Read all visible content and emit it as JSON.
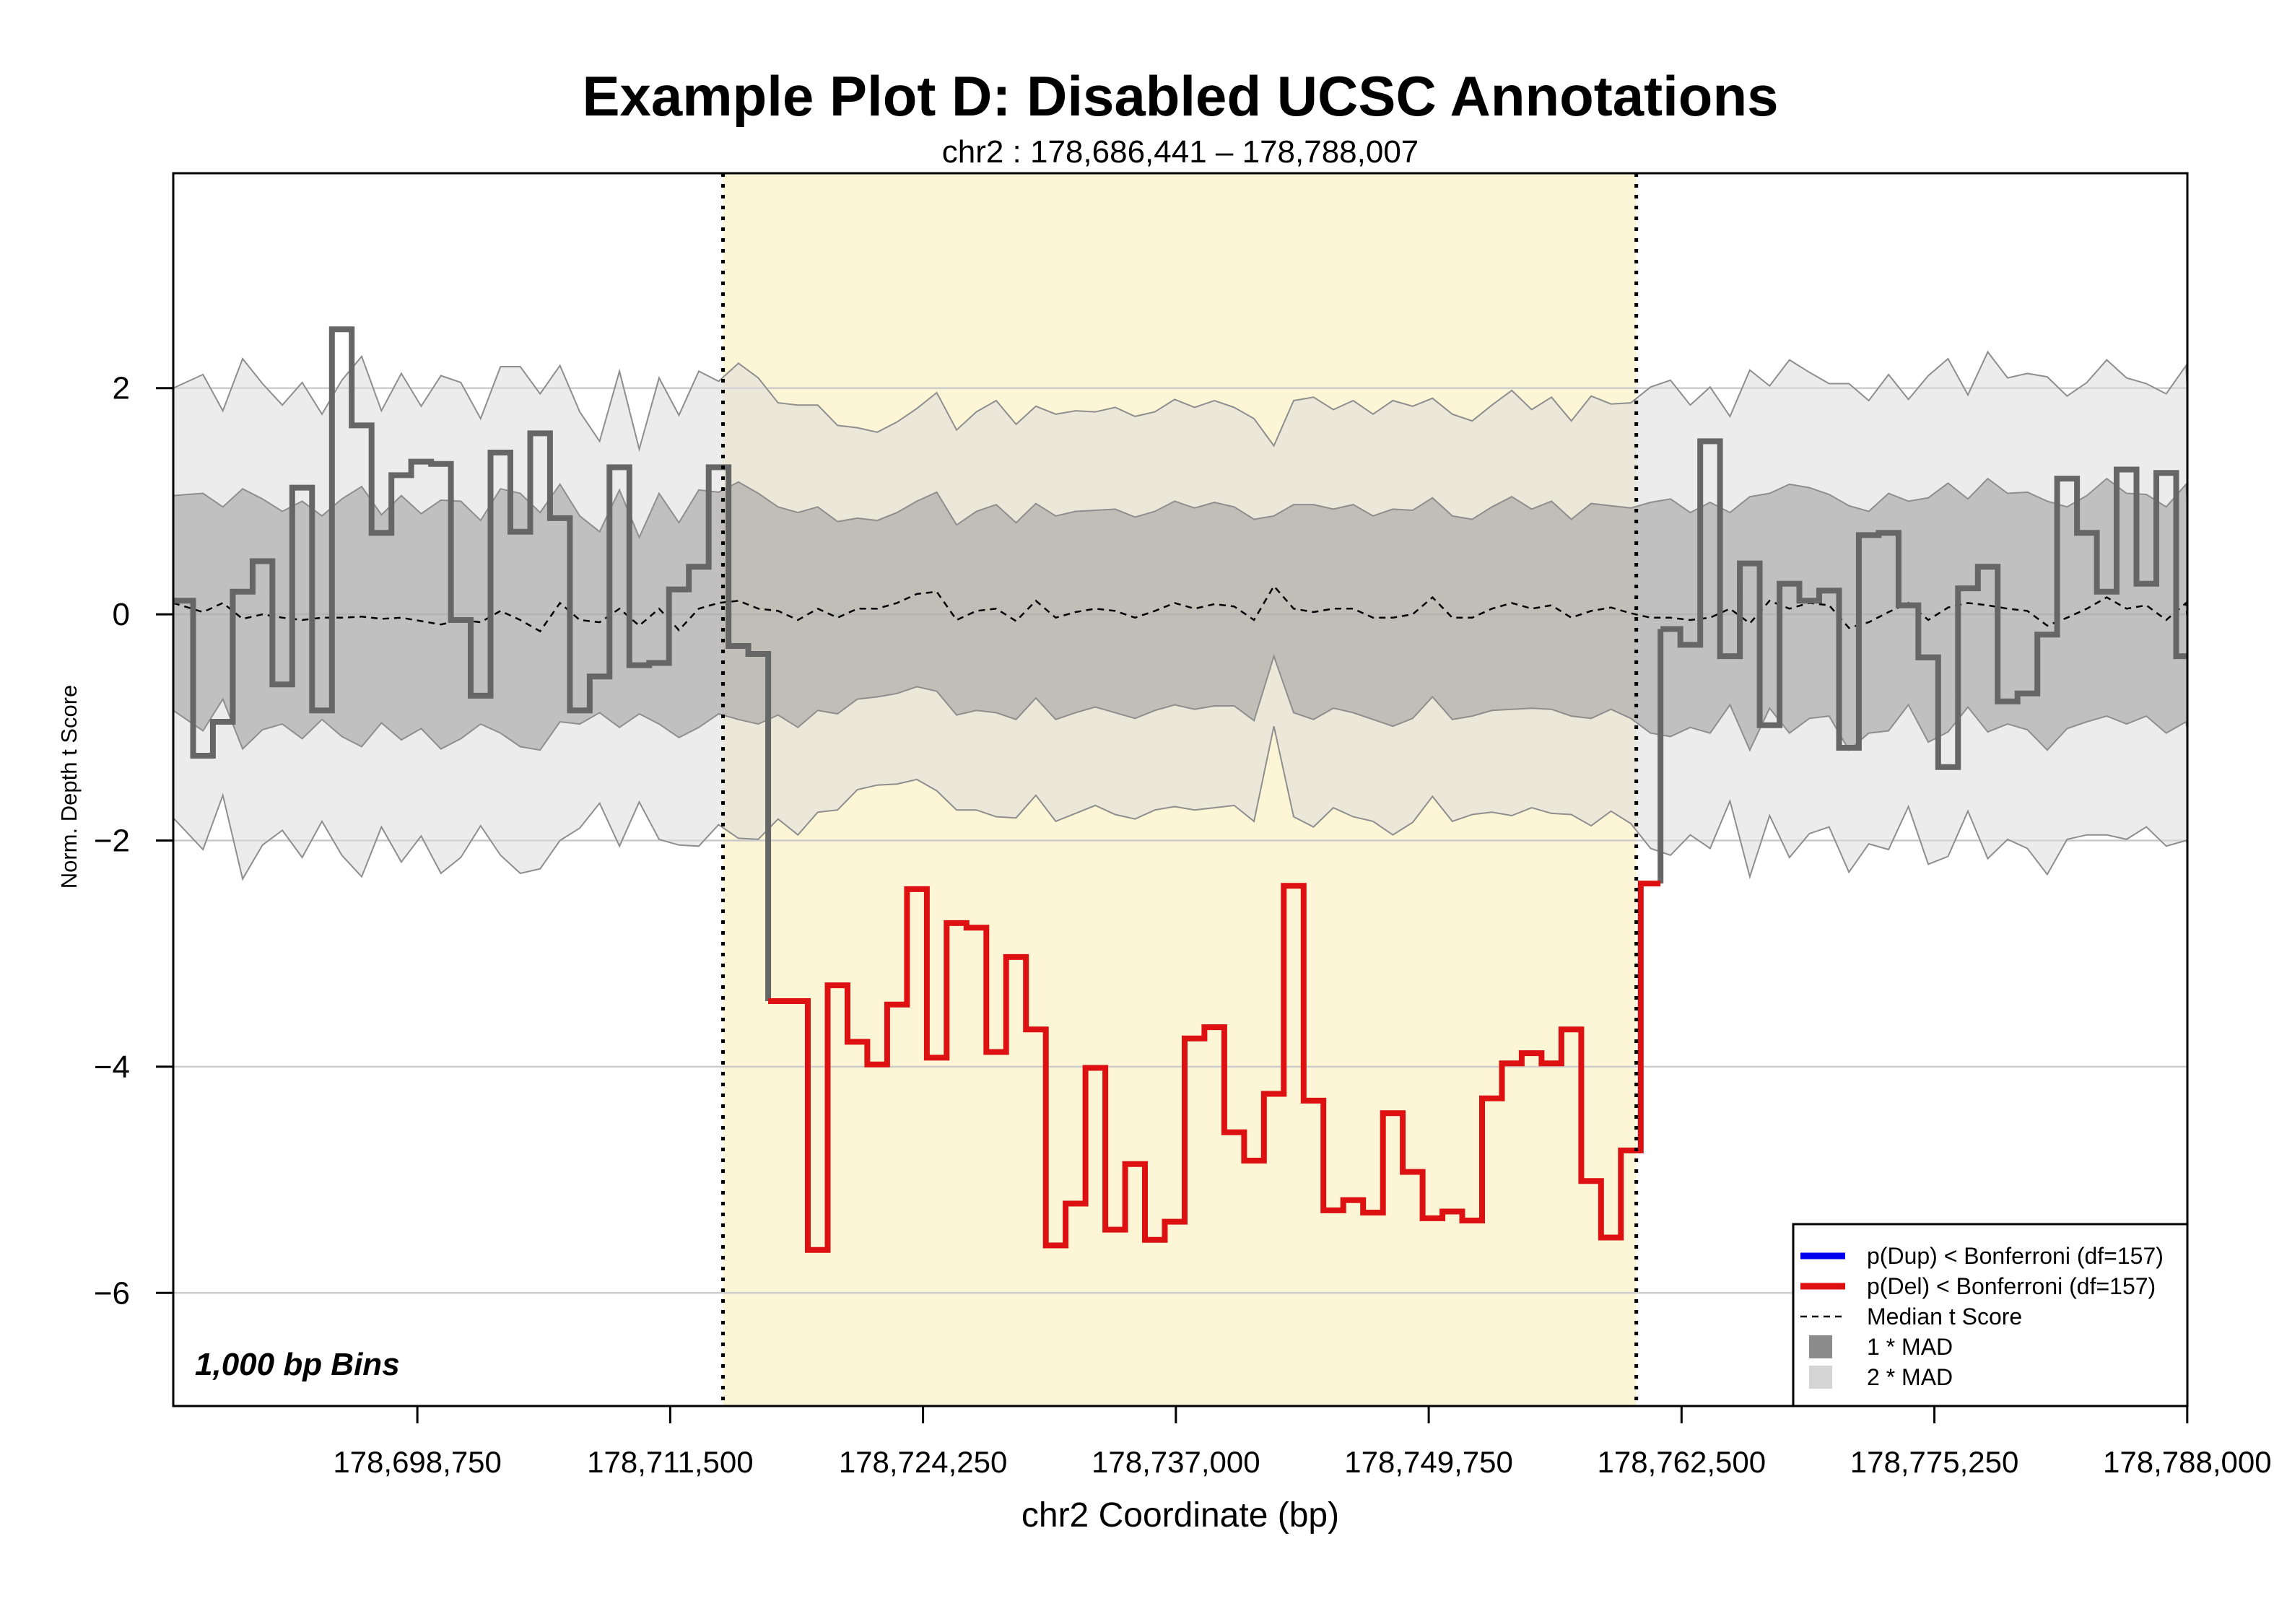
{
  "chart_data": {
    "type": "line",
    "title": "Example Plot D: Disabled UCSC Annotations",
    "subtitle": "chr2 : 178,686,441 – 178,788,007",
    "xlabel": "chr2 Coordinate (bp)",
    "ylabel": "Norm. Depth t Score",
    "annotation": "1,000 bp Bins",
    "xlim": [
      178686441,
      178788007
    ],
    "ylim": [
      -7,
      3.9
    ],
    "grid_y": true,
    "x_ticks": [
      178698750,
      178711500,
      178724250,
      178737000,
      178749750,
      178762500,
      178775250,
      178788000
    ],
    "x_tick_labels": [
      "178,698,750",
      "178,711,500",
      "178,724,250",
      "178,737,000",
      "178,749,750",
      "178,762,500",
      "178,775,250",
      "178,788,000"
    ],
    "y_ticks": [
      2,
      0,
      -2,
      -4,
      -6
    ],
    "y_tick_labels": [
      "2",
      "0",
      "−2",
      "−4",
      "−6"
    ],
    "highlight_region": {
      "start": 178714164,
      "end": 178760218,
      "color": "#fcf6d6"
    },
    "bin_size": 1000,
    "first_bin_start": 178686441,
    "t_scores": [
      0.12,
      -1.25,
      -0.95,
      0.2,
      0.47,
      -0.62,
      1.12,
      -0.85,
      2.52,
      1.67,
      0.72,
      1.23,
      1.35,
      1.33,
      -0.05,
      -0.72,
      1.43,
      0.73,
      1.6,
      0.85,
      -0.85,
      -0.55,
      1.3,
      -0.45,
      -0.43,
      0.22,
      0.42,
      1.3,
      -0.28,
      -0.35,
      -3.42,
      -3.42,
      -5.62,
      -3.28,
      -3.78,
      -3.98,
      -3.45,
      -2.43,
      -3.92,
      -2.73,
      -2.77,
      -3.87,
      -3.03,
      -3.67,
      -5.58,
      -5.21,
      -4.01,
      -5.44,
      -4.86,
      -5.53,
      -5.37,
      -3.75,
      -3.65,
      -4.58,
      -4.83,
      -4.24,
      -2.4,
      -4.3,
      -5.27,
      -5.18,
      -5.29,
      -4.41,
      -4.93,
      -5.34,
      -5.28,
      -5.36,
      -4.28,
      -3.97,
      -3.88,
      -3.97,
      -3.67,
      -5.01,
      -5.51,
      -4.74,
      -2.38,
      -0.13,
      -0.27,
      1.53,
      -0.37,
      0.45,
      -0.98,
      0.27,
      0.12,
      0.21,
      -1.18,
      0.7,
      0.72,
      0.08,
      -0.38,
      -1.35,
      0.23,
      0.42,
      -0.77,
      -0.7,
      -0.18,
      1.2,
      0.72,
      0.2,
      1.28,
      0.27,
      1.25,
      -0.37,
      -0.22
    ],
    "significant_del_range": [
      30,
      74
    ],
    "median_t": [
      0.1,
      0.02,
      0.1,
      -0.04,
      0.0,
      -0.03,
      -0.05,
      -0.03,
      -0.03,
      -0.02,
      -0.04,
      -0.03,
      -0.06,
      -0.09,
      -0.05,
      -0.07,
      0.03,
      -0.05,
      -0.15,
      0.1,
      -0.05,
      -0.07,
      0.05,
      -0.1,
      0.05,
      -0.14,
      0.05,
      0.1,
      0.12,
      0.05,
      0.03,
      -0.05,
      0.05,
      -0.03,
      0.05,
      0.05,
      0.1,
      0.18,
      0.2,
      -0.05,
      0.03,
      0.05,
      -0.06,
      0.12,
      -0.03,
      0.02,
      0.05,
      0.03,
      -0.03,
      0.03,
      0.1,
      0.05,
      0.09,
      0.07,
      -0.05,
      0.25,
      0.05,
      0.02,
      0.05,
      0.05,
      -0.03,
      -0.03,
      0.0,
      0.15,
      -0.03,
      -0.03,
      0.05,
      0.1,
      0.05,
      0.08,
      -0.03,
      0.03,
      0.06,
      0.01,
      -0.03,
      -0.03,
      -0.05,
      -0.03,
      0.05,
      -0.08,
      0.12,
      0.05,
      0.1,
      0.08,
      -0.12,
      -0.07,
      0.02,
      0.1,
      -0.05,
      0.06,
      0.1,
      0.08,
      0.05,
      0.03,
      -0.1,
      -0.03,
      0.05,
      0.15,
      0.05,
      0.08,
      -0.05,
      0.1,
      -0.03
    ],
    "mad": [
      0.95,
      1.05,
      0.85,
      1.15,
      1.02,
      0.94,
      1.05,
      0.9,
      1.05,
      1.15,
      0.92,
      1.08,
      0.95,
      1.1,
      1.05,
      0.9,
      1.08,
      1.12,
      1.05,
      1.05,
      0.92,
      0.8,
      1.05,
      0.78,
      1.02,
      0.95,
      1.05,
      0.98,
      1.05,
      1.02,
      0.92,
      0.95,
      0.9,
      0.85,
      0.8,
      0.78,
      0.8,
      0.82,
      0.88,
      0.84,
      0.88,
      0.92,
      0.87,
      0.86,
      0.9,
      0.89,
      0.87,
      0.9,
      0.89,
      0.88,
      0.9,
      0.89,
      0.9,
      0.88,
      0.89,
      0.62,
      0.92,
      0.95,
      0.88,
      0.92,
      0.9,
      0.96,
      0.92,
      0.88,
      0.9,
      0.87,
      0.9,
      0.94,
      0.88,
      0.92,
      0.87,
      0.95,
      0.9,
      0.93,
      1.02,
      1.05,
      0.95,
      1.02,
      0.85,
      1.12,
      0.95,
      1.1,
      1.02,
      0.98,
      1.08,
      0.98,
      1.05,
      0.9,
      1.08,
      1.1,
      0.92,
      1.12,
      1.02,
      1.05,
      1.1,
      0.98,
      1.0,
      1.05,
      1.02,
      0.98,
      1.0,
      1.05,
      1.0
    ],
    "legend": {
      "position": "bottom-right",
      "entries": [
        {
          "label": "p(Dup) < Bonferroni (df=157)",
          "style": "line",
          "color": "#0000ee"
        },
        {
          "label": "p(Del) < Bonferroni (df=157)",
          "style": "line",
          "color": "#dd1111"
        },
        {
          "label": "Median t Score",
          "style": "dashed",
          "color": "#000000"
        },
        {
          "label": "1 * MAD",
          "style": "box",
          "color": "#8c8c8c"
        },
        {
          "label": "2 * MAD",
          "style": "box",
          "color": "#d4d4d4"
        }
      ]
    },
    "colors": {
      "normal_line": "#666666",
      "del_line": "#dd1111",
      "mad1_fill": "#8c8c8c",
      "mad2_fill": "#dcdcdc",
      "region_border": "#000000"
    }
  }
}
